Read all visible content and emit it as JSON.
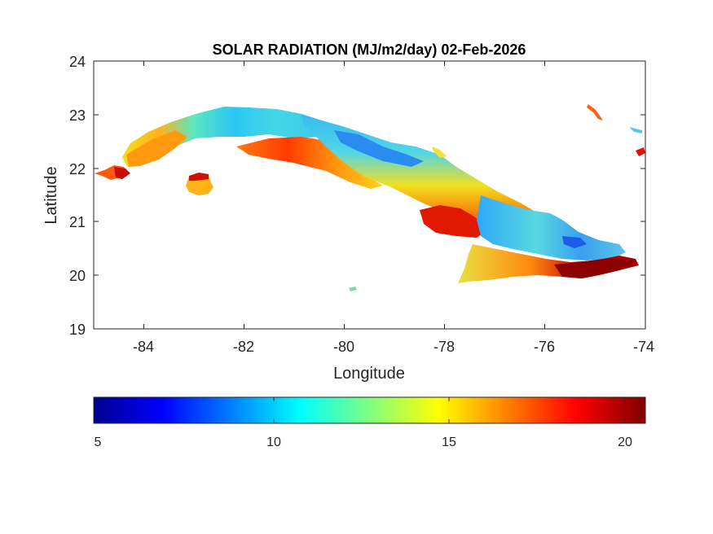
{
  "map": {
    "title": "SOLAR RADIATION (MJ/m2/day) 02-Feb-2026",
    "xlabel": "Longitude",
    "ylabel": "Latitude",
    "x_ticks": [
      "-84",
      "-82",
      "-80",
      "-78",
      "-76",
      "-74"
    ],
    "y_ticks": [
      "24",
      "23",
      "22",
      "21",
      "20",
      "19"
    ],
    "colorbar_ticks": [
      "5",
      "10",
      "15",
      "20"
    ],
    "colormap": "jet",
    "region": "Cuba",
    "lon_range": [
      -85,
      -74
    ],
    "lat_range": [
      19,
      24
    ],
    "value_range": [
      5,
      20.6
    ]
  },
  "colors": {
    "axes": "#262626",
    "background": "#ffffff"
  }
}
